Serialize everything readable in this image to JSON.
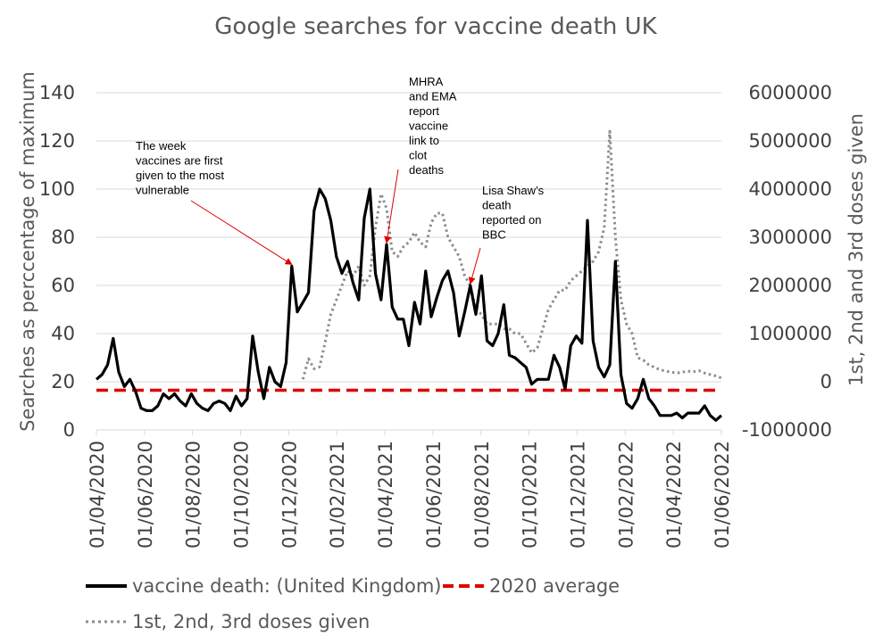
{
  "chart_data": {
    "type": "line",
    "title": "Google searches for vaccine death UK",
    "ylabel_left": "Searches as perccentage of maximum",
    "ylabel_right": "1st, 2nd and 3rd doses given",
    "ylim_left": [
      0,
      140
    ],
    "ylim_right": [
      -1000000,
      6000000
    ],
    "yticks_left": [
      "0",
      "20",
      "40",
      "60",
      "80",
      "100",
      "120",
      "140"
    ],
    "yticks_right": [
      "-1000000",
      "0",
      "1000000",
      "2000000",
      "3000000",
      "4000000",
      "5000000",
      "6000000"
    ],
    "x_ticks": [
      "01/04/2020",
      "01/06/2020",
      "01/08/2020",
      "01/10/2020",
      "01/12/2020",
      "01/02/2021",
      "01/04/2021",
      "01/06/2021",
      "01/08/2021",
      "01/10/2021",
      "01/12/2021",
      "01/02/2022",
      "01/04/2022",
      "01/06/2022"
    ],
    "grid": true,
    "legend_position": "bottom",
    "series": [
      {
        "name": "vaccine death: (United Kingdom)",
        "color": "#000000",
        "style": "solid",
        "axis": "left",
        "values": [
          21,
          23,
          27,
          38,
          24,
          18,
          21,
          16,
          9,
          8,
          8,
          10,
          15,
          13,
          15,
          12,
          10,
          15,
          11,
          9,
          8,
          11,
          12,
          11,
          8,
          14,
          10,
          13,
          39,
          24,
          13,
          26,
          20,
          18,
          28,
          68,
          49,
          53,
          57,
          91,
          100,
          96,
          87,
          72,
          65,
          70,
          61,
          54,
          88,
          100,
          65,
          54,
          77,
          51,
          46,
          46,
          35,
          53,
          44,
          66,
          47,
          55,
          62,
          66,
          57,
          39,
          49,
          60,
          48,
          64,
          37,
          35,
          40,
          52,
          31,
          30,
          28,
          26,
          19,
          21,
          21,
          21,
          31,
          26,
          17,
          35,
          39,
          36,
          87,
          37,
          26,
          22,
          27,
          70,
          23,
          11,
          9,
          13,
          21,
          13,
          10,
          6,
          6,
          6,
          7,
          5,
          7,
          7,
          7,
          10,
          6,
          4,
          6
        ]
      },
      {
        "name": "2020 average",
        "color": "#e00000",
        "style": "dashed",
        "axis": "left",
        "value": 16.5
      },
      {
        "name": "1st, 2nd, 3rd doses given",
        "color": "#8c8c8c",
        "style": "dotted",
        "axis": "right",
        "start_index": 37,
        "values": [
          50000,
          480000,
          270000,
          310000,
          830000,
          1400000,
          1700000,
          2000000,
          2300000,
          2200000,
          2400000,
          2000000,
          2200000,
          3200000,
          3900000,
          3600000,
          2700000,
          2600000,
          2800000,
          2900000,
          3100000,
          2900000,
          2800000,
          3300000,
          3500000,
          3500000,
          3000000,
          2800000,
          2600000,
          2200000,
          2000000,
          1500000,
          1400000,
          1200000,
          1200000,
          1200000,
          1100000,
          1100000,
          1000000,
          1000000,
          800000,
          600000,
          700000,
          1100000,
          1500000,
          1700000,
          1900000,
          1900000,
          2100000,
          2200000,
          2300000,
          2400000,
          2500000,
          2700000,
          3200000,
          5200000,
          3000000,
          1700000,
          1200000,
          1000000,
          500000,
          450000,
          350000,
          300000,
          250000,
          220000,
          200000,
          180000,
          200000,
          220000,
          210000,
          230000,
          180000,
          150000,
          120000,
          80000
        ]
      }
    ],
    "annotations": [
      {
        "lines": [
          "The week",
          "vaccines are first",
          "given to the most",
          "vulnerable"
        ],
        "target_index": 35,
        "target_value": 68
      },
      {
        "lines": [
          "MHRA",
          "and EMA",
          "report",
          "vaccine",
          "link to",
          "clot",
          "deaths"
        ],
        "target_index": 52,
        "target_value": 77
      },
      {
        "lines": [
          "Lisa Shaw’s",
          "death",
          "reported on",
          "BBC"
        ],
        "target_index": 67,
        "target_value": 60
      }
    ]
  }
}
